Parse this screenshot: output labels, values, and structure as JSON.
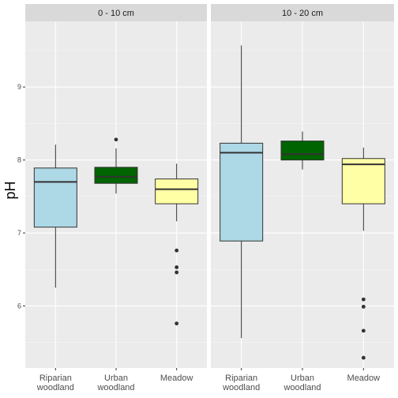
{
  "chart_data": {
    "type": "box",
    "ylabel": "pH",
    "xlabel": "",
    "ylim": [
      5.15,
      9.9
    ],
    "yticks": [
      6,
      7,
      8,
      9
    ],
    "y_minor_ticks": [
      5.5,
      6.5,
      7.5,
      8.5,
      9.5
    ],
    "categories": [
      {
        "line1": "Riparian",
        "line2": "woodland"
      },
      {
        "line1": "Urban",
        "line2": "woodland"
      },
      {
        "line1": "Meadow",
        "line2": ""
      }
    ],
    "category_colors": [
      "#add8e6",
      "#006400",
      "#ffffa5"
    ],
    "panels": [
      {
        "label": "0 - 10 cm",
        "boxes": [
          {
            "category": "Riparian woodland",
            "whisker_low": 6.25,
            "q1": 7.08,
            "median": 7.7,
            "q3": 7.89,
            "whisker_high": 8.21,
            "outliers": []
          },
          {
            "category": "Urban woodland",
            "whisker_low": 7.54,
            "q1": 7.68,
            "median": 7.77,
            "q3": 7.9,
            "whisker_high": 8.16,
            "outliers": [
              8.28
            ]
          },
          {
            "category": "Meadow",
            "whisker_low": 7.16,
            "q1": 7.4,
            "median": 7.6,
            "q3": 7.74,
            "whisker_high": 7.95,
            "outliers": [
              6.76,
              6.53,
              6.46,
              5.76
            ]
          }
        ]
      },
      {
        "label": "10 - 20 cm",
        "boxes": [
          {
            "category": "Riparian woodland",
            "whisker_low": 5.56,
            "q1": 6.89,
            "median": 8.1,
            "q3": 8.23,
            "whisker_high": 9.57,
            "outliers": []
          },
          {
            "category": "Urban woodland",
            "whisker_low": 7.87,
            "q1": 8.0,
            "median": 8.08,
            "q3": 8.26,
            "whisker_high": 8.39,
            "outliers": []
          },
          {
            "category": "Meadow",
            "whisker_low": 7.03,
            "q1": 7.4,
            "median": 7.94,
            "q3": 8.02,
            "whisker_high": 8.17,
            "outliers": [
              6.09,
              5.99,
              5.66,
              5.29
            ]
          }
        ]
      }
    ],
    "grid": true,
    "legend": "none"
  }
}
